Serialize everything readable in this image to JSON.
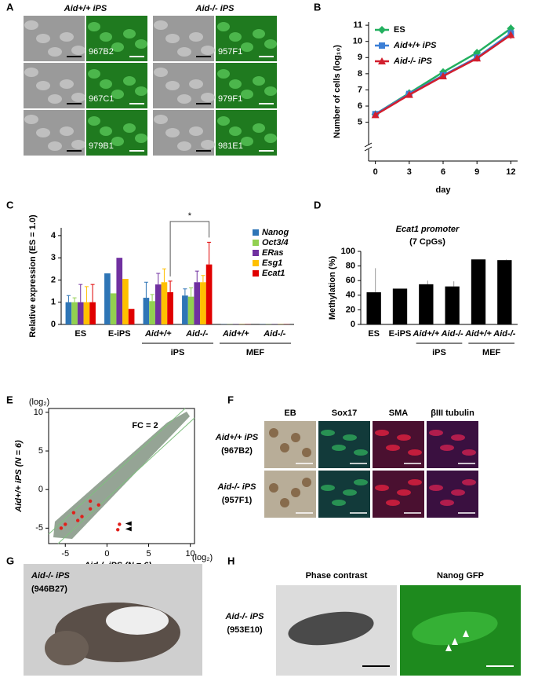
{
  "panel_labels": [
    "A",
    "B",
    "C",
    "D",
    "E",
    "F",
    "G",
    "H"
  ],
  "panel_a": {
    "headers": [
      "Aid+/+ iPS",
      "Aid-/- iPS"
    ],
    "clones": [
      [
        "967B2",
        "957F1"
      ],
      [
        "967C1",
        "979F1"
      ],
      [
        "979B1",
        "981E1"
      ]
    ]
  },
  "chart_data": [
    {
      "type": "line",
      "ylabel": "Number of cells (log₁₀)",
      "xlabel": "day",
      "x": [
        0,
        3,
        6,
        9,
        12
      ],
      "xlim": [
        -0.6,
        12.6
      ],
      "xticks": [
        0,
        3,
        6,
        9,
        12
      ],
      "ylim": [
        2.6,
        11.2
      ],
      "yticks": [
        5,
        6,
        7,
        8,
        9,
        10,
        11
      ],
      "axis_break": true,
      "legend": "upper-left",
      "series": [
        {
          "name": "ES",
          "color": "#22b05f",
          "marker": "diamond",
          "values": [
            5.5,
            6.8,
            8.1,
            9.3,
            10.8
          ],
          "errors": [
            0.1,
            0.1,
            0.15,
            0.2,
            0.25
          ]
        },
        {
          "name": "Aid+/+ iPS",
          "color": "#3b7fd6",
          "marker": "square",
          "values": [
            5.5,
            6.75,
            7.9,
            9.0,
            10.5
          ],
          "errors": [
            0.1,
            0.1,
            0.15,
            0.2,
            0.25
          ]
        },
        {
          "name": "Aid-/- iPS",
          "color": "#d21f2e",
          "marker": "triangle",
          "values": [
            5.45,
            6.7,
            7.85,
            8.95,
            10.4
          ],
          "errors": [
            0.1,
            0.1,
            0.15,
            0.2,
            0.25
          ]
        }
      ]
    },
    {
      "type": "grouped-bar",
      "ylabel": "Relative expression (ES = 1.0)",
      "categories": [
        "ES",
        "E-iPS",
        "Aid+/+",
        "Aid-/-",
        "Aid+/+",
        "Aid-/-"
      ],
      "groups": [
        "iPS",
        "MEF"
      ],
      "ylim": [
        0,
        4.35
      ],
      "yticks": [
        0,
        1,
        2,
        3,
        4
      ],
      "legend": "upper-right",
      "annotation": "*",
      "series": [
        {
          "name": "Nanog",
          "color": "#2e75b6",
          "values": [
            1,
            2.3,
            1.2,
            1.3,
            0.01,
            0.01
          ],
          "errors": [
            0.3,
            null,
            0.7,
            0.3,
            null,
            null
          ]
        },
        {
          "name": "Oct3/4",
          "color": "#92d050",
          "values": [
            1,
            1.4,
            1.05,
            1.25,
            0.01,
            0.01
          ],
          "errors": [
            0.2,
            null,
            0.3,
            0.4,
            null,
            null
          ]
        },
        {
          "name": "ERas",
          "color": "#7030a0",
          "values": [
            1,
            3.0,
            1.8,
            1.9,
            0.01,
            0.01
          ],
          "errors": [
            0.8,
            null,
            0.5,
            0.5,
            null,
            null
          ]
        },
        {
          "name": "Esg1",
          "color": "#ffc000",
          "values": [
            1,
            2.05,
            1.9,
            1.9,
            0.01,
            0.01
          ],
          "errors": [
            0.7,
            null,
            0.6,
            0.3,
            null,
            null
          ]
        },
        {
          "name": "Ecat1",
          "color": "#e00000",
          "values": [
            1,
            0.7,
            1.45,
            2.7,
            0.01,
            0.01
          ],
          "errors": [
            0.8,
            null,
            0.5,
            1.0,
            null,
            null
          ]
        }
      ]
    },
    {
      "type": "bar",
      "title": "Ecat1 promoter",
      "subtitle": "(7 CpGs)",
      "ylabel": "Methylation (%)",
      "categories": [
        "ES",
        "E-iPS",
        "Aid+/+",
        "Aid-/-",
        "Aid+/+",
        "Aid-/-"
      ],
      "groups": [
        "iPS",
        "MEF"
      ],
      "values": [
        44,
        49,
        55,
        52,
        89,
        88
      ],
      "errors": [
        33,
        null,
        5,
        7,
        null,
        1
      ],
      "color": "#000000",
      "ylim": [
        0,
        100
      ],
      "yticks": [
        0,
        20,
        40,
        60,
        80,
        100
      ]
    },
    {
      "type": "scatter",
      "xlabel": "Aid-/- iPS (N = 6)",
      "ylabel": "Aid+/+ iPS (N = 6)",
      "unit": "(log₂)",
      "annotation": "FC = 2",
      "xlim": [
        -7,
        10.5
      ],
      "ylim": [
        -7,
        10.5
      ],
      "xticks": [
        -5,
        0,
        5,
        10
      ],
      "yticks": [
        -5,
        0,
        5,
        10
      ],
      "color": "#e0201b",
      "x": [
        -5.5,
        -5,
        -4,
        -3.5,
        -3,
        -2,
        -2,
        -1,
        1.5,
        1.3
      ],
      "y": [
        -5,
        -4.5,
        -3,
        -4,
        -3.5,
        -1.5,
        -2.5,
        -2,
        -4.5,
        -5.2
      ]
    }
  ],
  "panel_f": {
    "columns": [
      "EB",
      "Sox17",
      "SMA",
      "βIII tubulin"
    ],
    "rows": [
      {
        "line": "Aid+/+ iPS",
        "clone": "(967B2)"
      },
      {
        "line": "Aid-/- iPS",
        "clone": "(957F1)"
      }
    ]
  },
  "panel_g": {
    "line": "Aid-/- iPS",
    "clone": "(946B27)"
  },
  "panel_h": {
    "columns": [
      "Phase contrast",
      "Nanog GFP"
    ],
    "line": "Aid-/- iPS",
    "clone": "(953E10)"
  }
}
